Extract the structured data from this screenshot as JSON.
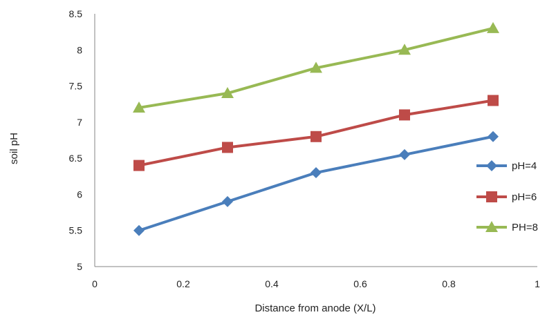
{
  "chart_data": {
    "type": "line",
    "title": "",
    "xlabel": "Distance from anode (X/L)",
    "ylabel": "soil pH",
    "xlim": [
      0,
      1
    ],
    "ylim": [
      5,
      8.5
    ],
    "x_ticks": [
      "0",
      "0.2",
      "0.4",
      "0.6",
      "0.8",
      "1"
    ],
    "y_ticks": [
      "5",
      "5.5",
      "6",
      "6.5",
      "7",
      "7.5",
      "8",
      "8.5"
    ],
    "x": [
      0.1,
      0.3,
      0.5,
      0.7,
      0.9
    ],
    "series": [
      {
        "name": "pH=4",
        "values": [
          5.5,
          5.9,
          6.3,
          6.55,
          6.8
        ],
        "color": "#4a7ebb",
        "marker": "diamond"
      },
      {
        "name": "pH=6",
        "values": [
          6.4,
          6.65,
          6.8,
          7.1,
          7.3
        ],
        "color": "#be4b48",
        "marker": "square"
      },
      {
        "name": "PH=8",
        "values": [
          7.2,
          7.4,
          7.75,
          8.0,
          8.3
        ],
        "color": "#98b954",
        "marker": "triangle"
      }
    ],
    "grid": false,
    "legend_position": "right"
  }
}
